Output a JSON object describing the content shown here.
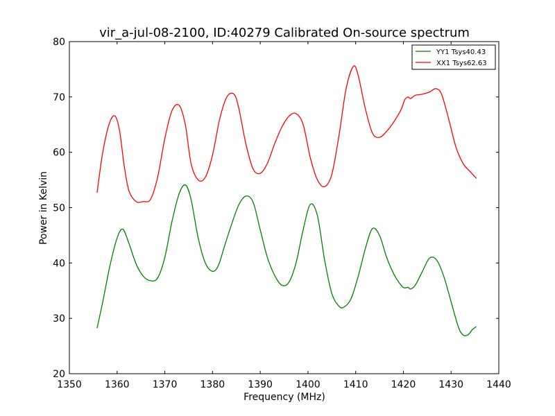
{
  "chart_data": {
    "type": "line",
    "title": "vir_a-jul-08-2100, ID:40279 Calibrated On-source spectrum",
    "xlabel": "Frequency (MHz)",
    "ylabel": "Power in Kelvin",
    "xlim": [
      1350,
      1440
    ],
    "ylim": [
      20,
      80
    ],
    "xticks": [
      1350,
      1360,
      1370,
      1380,
      1390,
      1400,
      1410,
      1420,
      1430,
      1440
    ],
    "yticks": [
      20,
      30,
      40,
      50,
      60,
      70,
      80
    ],
    "grid": false,
    "legend_position": "top-right",
    "series": [
      {
        "name": "YY1 Tsys40.43",
        "color": "#008000",
        "x": [
          1355.8,
          1357.0,
          1358.5,
          1360.0,
          1361.2,
          1362.5,
          1364.0,
          1365.5,
          1367.0,
          1368.5,
          1370.0,
          1371.5,
          1373.0,
          1374.3,
          1375.5,
          1377.0,
          1378.5,
          1380.0,
          1381.2,
          1382.5,
          1384.0,
          1385.5,
          1387.0,
          1388.5,
          1390.0,
          1391.5,
          1393.0,
          1394.5,
          1396.0,
          1397.5,
          1399.0,
          1400.5,
          1402.0,
          1403.5,
          1405.0,
          1406.5,
          1407.5,
          1409.0,
          1410.5,
          1412.0,
          1413.5,
          1415.0,
          1416.5,
          1418.0,
          1419.5,
          1420.2,
          1421.0,
          1421.5,
          1422.5,
          1424.0,
          1425.5,
          1427.0,
          1428.5,
          1430.0,
          1431.5,
          1432.5,
          1433.5,
          1434.5,
          1435.3
        ],
        "y": [
          28.2,
          33.0,
          39.5,
          44.5,
          46.1,
          43.5,
          39.8,
          37.6,
          36.8,
          37.3,
          41.0,
          47.5,
          52.5,
          54.1,
          51.5,
          44.5,
          40.0,
          38.5,
          39.5,
          43.0,
          47.0,
          50.5,
          52.1,
          51.0,
          46.0,
          41.0,
          37.8,
          36.0,
          36.5,
          40.0,
          46.0,
          50.6,
          48.5,
          40.5,
          34.5,
          32.2,
          32.0,
          33.5,
          37.5,
          42.5,
          46.2,
          45.0,
          41.0,
          38.0,
          36.0,
          35.5,
          35.6,
          35.3,
          36.0,
          38.5,
          40.9,
          40.5,
          37.5,
          33.0,
          28.5,
          27.0,
          27.0,
          28.0,
          28.5
        ]
      },
      {
        "name": "XX1 Tsys62.63",
        "color": "#ff0000",
        "x": [
          1355.8,
          1357.0,
          1358.3,
          1359.5,
          1360.5,
          1361.5,
          1362.5,
          1364.0,
          1365.5,
          1367.0,
          1368.5,
          1370.0,
          1371.5,
          1373.0,
          1374.3,
          1375.5,
          1377.0,
          1378.5,
          1380.0,
          1381.5,
          1383.0,
          1384.5,
          1385.5,
          1387.0,
          1388.5,
          1390.0,
          1391.5,
          1393.0,
          1394.5,
          1396.0,
          1397.5,
          1399.0,
          1400.5,
          1402.0,
          1403.5,
          1405.0,
          1406.5,
          1408.0,
          1409.5,
          1410.5,
          1412.0,
          1413.5,
          1415.0,
          1416.5,
          1418.0,
          1419.5,
          1420.3,
          1421.0,
          1421.5,
          1422.5,
          1424.0,
          1425.5,
          1426.8,
          1428.0,
          1429.5,
          1431.0,
          1432.5,
          1434.0,
          1435.3
        ],
        "y": [
          52.7,
          60.0,
          65.0,
          66.6,
          64.0,
          57.5,
          53.0,
          51.1,
          51.1,
          51.5,
          55.5,
          62.5,
          67.5,
          68.5,
          65.0,
          58.0,
          55.0,
          55.5,
          59.5,
          66.0,
          70.0,
          70.5,
          68.0,
          61.5,
          57.0,
          56.2,
          58.0,
          61.5,
          64.5,
          66.5,
          67.0,
          65.0,
          59.0,
          55.0,
          53.8,
          56.0,
          63.0,
          71.5,
          75.5,
          74.0,
          68.0,
          63.5,
          62.7,
          63.8,
          65.5,
          67.7,
          69.5,
          70.0,
          69.7,
          70.3,
          70.5,
          70.9,
          71.5,
          70.5,
          66.0,
          61.0,
          58.0,
          56.5,
          55.3
        ]
      }
    ]
  }
}
